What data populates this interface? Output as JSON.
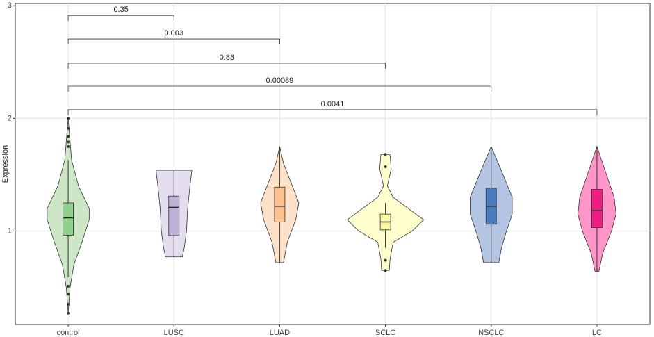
{
  "chart_data": {
    "type": "violin",
    "y_label": "Expression",
    "ylim": [
      0.17,
      3.02
    ],
    "yticks": [
      1,
      2,
      3
    ],
    "grid": true,
    "categories": [
      "control",
      "LUSC",
      "LUAD",
      "SCLC",
      "NSCLC",
      "LC"
    ],
    "groups": [
      {
        "fill": "#cde6c5",
        "box_fill": "#8fd08a",
        "min": 0.59,
        "q1": 0.963,
        "median": 1.117,
        "q3": 1.25,
        "max": 1.63,
        "outliers": [
          2.0,
          1.91,
          1.84,
          1.79,
          1.75,
          0.51,
          0.44,
          0.35,
          0.27
        ],
        "violin": {
          "y": [
            2.0,
            1.63,
            1.4,
            1.2,
            1.1,
            0.9,
            0.7,
            0.5,
            0.27
          ],
          "width": [
            0,
            0.09,
            0.27,
            0.55,
            0.55,
            0.36,
            0.15,
            0.05,
            0
          ]
        }
      },
      {
        "fill": "#e4ddee",
        "box_fill": "#bfb2d8",
        "min": 0.77,
        "q1": 0.96,
        "median": 1.21,
        "q3": 1.31,
        "max": 1.54,
        "outliers": [],
        "violin": {
          "y": [
            1.54,
            1.4,
            1.2,
            1.0,
            0.85,
            0.77
          ],
          "width": [
            0.47,
            0.42,
            0.36,
            0.33,
            0.27,
            0.22
          ]
        }
      },
      {
        "fill": "#fde1c8",
        "box_fill": "#fdc28e",
        "min": 0.72,
        "q1": 1.08,
        "median": 1.22,
        "q3": 1.39,
        "max": 1.75,
        "outliers": [],
        "violin": {
          "y": [
            1.75,
            1.6,
            1.4,
            1.25,
            1.1,
            0.9,
            0.72
          ],
          "width": [
            0,
            0.1,
            0.33,
            0.5,
            0.42,
            0.2,
            0.1
          ]
        }
      },
      {
        "fill": "#fefecd",
        "box_fill": "#fbf7a2",
        "min": 0.85,
        "q1": 1.01,
        "median": 1.08,
        "q3": 1.15,
        "max": 1.25,
        "outliers": [
          1.68,
          1.57,
          0.74,
          0.65
        ],
        "violin": {
          "y": [
            1.68,
            1.55,
            1.4,
            1.3,
            1.1,
            1.0,
            0.9,
            0.75,
            0.65
          ],
          "width": [
            0.12,
            0.15,
            0.05,
            0.2,
            1.0,
            0.7,
            0.2,
            0.12,
            0.1
          ]
        }
      },
      {
        "fill": "#b3c5e1",
        "box_fill": "#4a7bbe",
        "min": 0.72,
        "q1": 1.06,
        "median": 1.22,
        "q3": 1.38,
        "max": 1.75,
        "outliers": [],
        "violin": {
          "y": [
            1.75,
            1.55,
            1.3,
            1.15,
            1.0,
            0.85,
            0.72
          ],
          "width": [
            0,
            0.25,
            0.55,
            0.55,
            0.4,
            0.27,
            0.2
          ]
        }
      },
      {
        "fill": "#ff95c9",
        "box_fill": "#ee1d83",
        "min": 0.64,
        "q1": 1.03,
        "median": 1.18,
        "q3": 1.37,
        "max": 1.75,
        "outliers": [],
        "violin": {
          "y": [
            1.75,
            1.55,
            1.3,
            1.15,
            1.0,
            0.8,
            0.64
          ],
          "width": [
            0,
            0.2,
            0.45,
            0.5,
            0.38,
            0.15,
            0.05
          ]
        }
      }
    ],
    "comparisons": [
      {
        "pair": [
          "control",
          "LUSC"
        ],
        "p": 0.35,
        "y": 2.914
      },
      {
        "pair": [
          "control",
          "LUAD"
        ],
        "p": 0.003,
        "y": 2.705
      },
      {
        "pair": [
          "control",
          "SCLC"
        ],
        "p": 0.88,
        "y": 2.49
      },
      {
        "pair": [
          "control",
          "NSCLC"
        ],
        "p": 0.00089,
        "y": 2.286
      },
      {
        "pair": [
          "control",
          "LC"
        ],
        "p": 0.0041,
        "y": 2.077
      }
    ]
  }
}
